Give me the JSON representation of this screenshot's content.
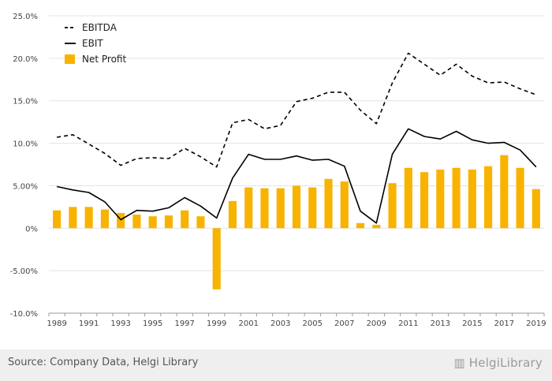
{
  "chart_data": {
    "type": "line",
    "x": [
      1989,
      1990,
      1991,
      1992,
      1993,
      1994,
      1995,
      1996,
      1997,
      1998,
      1999,
      2000,
      2001,
      2002,
      2003,
      2004,
      2005,
      2006,
      2007,
      2008,
      2009,
      2010,
      2011,
      2012,
      2013,
      2014,
      2015,
      2016,
      2017,
      2018,
      2019
    ],
    "x_tick_labels": [
      "1989",
      "1991",
      "1993",
      "1995",
      "1997",
      "1999",
      "2001",
      "2003",
      "2005",
      "2007",
      "2009",
      "2011",
      "2013",
      "2015",
      "2017",
      "2019"
    ],
    "y_ticks": [
      25,
      20,
      15,
      10,
      5,
      0,
      -5,
      -10
    ],
    "y_tick_labels": [
      "25.0%",
      "20.0%",
      "15.0%",
      "10.0%",
      "5.00%",
      "0%",
      "-5.00%",
      "-10.0%"
    ],
    "ylim": [
      -10,
      25
    ],
    "grid": "horizontal",
    "legend_position": "top-left",
    "series": [
      {
        "name": "EBITDA",
        "kind": "line",
        "style": "dashed",
        "color": "#000000",
        "values": [
          10.7,
          11.0,
          9.9,
          8.8,
          7.4,
          8.2,
          8.3,
          8.2,
          9.4,
          8.4,
          7.2,
          12.4,
          12.8,
          11.7,
          12.1,
          14.9,
          15.3,
          16.0,
          16.0,
          13.9,
          12.3,
          17.1,
          20.6,
          19.3,
          18.0,
          19.3,
          17.9,
          17.1,
          17.2,
          16.4,
          15.7
        ]
      },
      {
        "name": "EBIT",
        "kind": "line",
        "style": "solid",
        "color": "#000000",
        "values": [
          4.9,
          4.5,
          4.2,
          3.1,
          1.0,
          2.1,
          2.0,
          2.4,
          3.6,
          2.6,
          1.2,
          5.9,
          8.7,
          8.1,
          8.1,
          8.5,
          8.0,
          8.1,
          7.3,
          2.0,
          0.6,
          8.7,
          11.7,
          10.8,
          10.5,
          11.4,
          10.4,
          10.0,
          10.1,
          9.2,
          7.2
        ]
      },
      {
        "name": "Net Profit",
        "kind": "bar",
        "color": "#f8b300",
        "values": [
          2.1,
          2.5,
          2.5,
          2.2,
          1.8,
          1.6,
          1.4,
          1.5,
          2.1,
          1.4,
          -7.2,
          3.2,
          4.8,
          4.7,
          4.7,
          5.0,
          4.8,
          5.8,
          5.5,
          0.6,
          0.4,
          5.3,
          7.1,
          6.6,
          6.9,
          7.1,
          6.9,
          7.3,
          8.6,
          7.1,
          4.6
        ]
      }
    ]
  },
  "footer": {
    "source": "Source: Company Data, Helgi Library",
    "logo": "HelgiLibrary"
  }
}
